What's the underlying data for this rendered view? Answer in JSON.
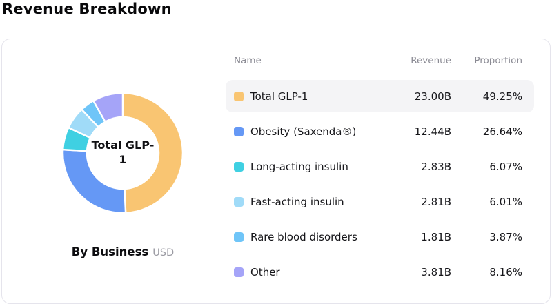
{
  "page_title": "Revenue Breakdown",
  "card": {
    "chart": {
      "center_label": "Total GLP-1",
      "caption_bold": "By Business",
      "caption_unit": "USD"
    },
    "table": {
      "headers": {
        "name": "Name",
        "revenue": "Revenue",
        "proportion": "Proportion"
      },
      "rows": [
        {
          "name": "Total GLP-1",
          "revenue": "23.00B",
          "proportion": "49.25%",
          "color": "#f9c572",
          "highlighted": true
        },
        {
          "name": "Obesity (Saxenda®)",
          "revenue": "12.44B",
          "proportion": "26.64%",
          "color": "#6598f5",
          "highlighted": false
        },
        {
          "name": "Long-acting insulin",
          "revenue": "2.83B",
          "proportion": "6.07%",
          "color": "#3fd0e2",
          "highlighted": false
        },
        {
          "name": "Fast-acting insulin",
          "revenue": "2.81B",
          "proportion": "6.01%",
          "color": "#a0dbf8",
          "highlighted": false
        },
        {
          "name": "Rare blood disorders",
          "revenue": "1.81B",
          "proportion": "3.87%",
          "color": "#6fc5f8",
          "highlighted": false
        },
        {
          "name": "Other",
          "revenue": "3.81B",
          "proportion": "8.16%",
          "color": "#a5a4f8",
          "highlighted": false
        }
      ]
    }
  },
  "chart_data": {
    "type": "pie",
    "subtype": "donut",
    "title": "Revenue Breakdown",
    "center_label": "Total GLP-1",
    "caption": "By Business",
    "unit": "USD",
    "categories": [
      "Total GLP-1",
      "Obesity (Saxenda®)",
      "Long-acting insulin",
      "Fast-acting insulin",
      "Rare blood disorders",
      "Other"
    ],
    "values_percent": [
      49.25,
      26.64,
      6.07,
      6.01,
      3.87,
      8.16
    ],
    "revenues_billions_usd": [
      23.0,
      12.44,
      2.83,
      2.81,
      1.81,
      3.81
    ],
    "colors": [
      "#f9c572",
      "#6598f5",
      "#3fd0e2",
      "#a0dbf8",
      "#6fc5f8",
      "#a5a4f8"
    ],
    "start_angle_deg": 0,
    "direction": "clockwise",
    "legend_position": "right-table"
  }
}
